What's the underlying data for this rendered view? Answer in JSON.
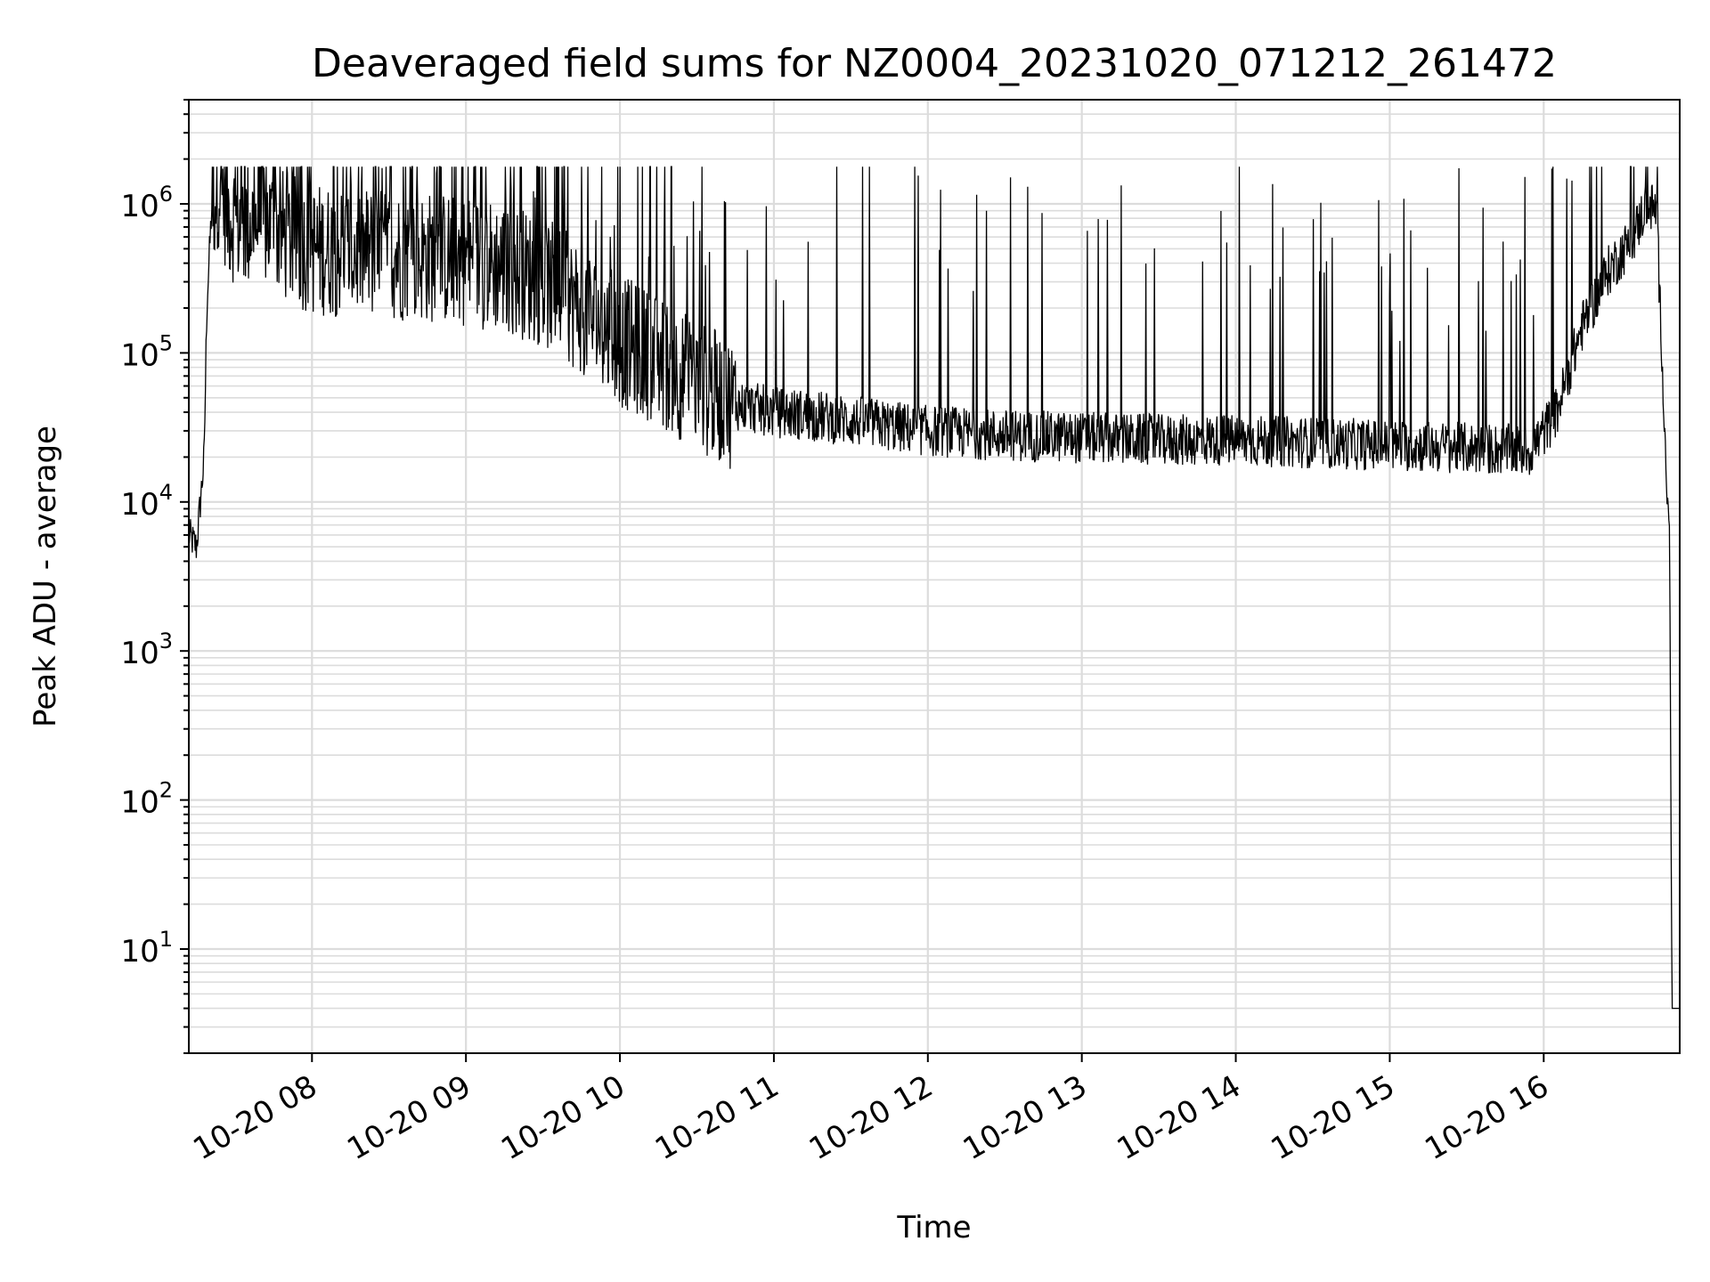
{
  "chart_data": {
    "type": "line",
    "title": "Deaveraged field sums for NZ0004_20231020_071212_261472",
    "xlabel": "Time",
    "ylabel": "Peak ADU - average",
    "yscale": "log",
    "ylim": [
      2,
      5000000
    ],
    "xlim": [
      "2023-10-20T07:12",
      "2023-10-20T16:53"
    ],
    "grid": true,
    "x_ticks": [
      "10-20 08",
      "10-20 09",
      "10-20 10",
      "10-20 11",
      "10-20 12",
      "10-20 13",
      "10-20 14",
      "10-20 15",
      "10-20 16"
    ],
    "y_ticks": [
      {
        "base": "10",
        "exp": "1"
      },
      {
        "base": "10",
        "exp": "2"
      },
      {
        "base": "10",
        "exp": "3"
      },
      {
        "base": "10",
        "exp": "4"
      },
      {
        "base": "10",
        "exp": "5"
      },
      {
        "base": "10",
        "exp": "6"
      }
    ],
    "series": [
      {
        "color": "#000000",
        "x": [
          "2023-10-20T07:12",
          "2023-10-20T07:15",
          "2023-10-20T07:18",
          "2023-10-20T07:19",
          "2023-10-20T07:21",
          "2023-10-20T07:24",
          "2023-10-20T07:27",
          "2023-10-20T07:33",
          "2023-10-20T07:40",
          "2023-10-20T07:50",
          "2023-10-20T08:00",
          "2023-10-20T08:15",
          "2023-10-20T08:30",
          "2023-10-20T08:45",
          "2023-10-20T09:00",
          "2023-10-20T09:15",
          "2023-10-20T09:30",
          "2023-10-20T09:45",
          "2023-10-20T10:00",
          "2023-10-20T10:15",
          "2023-10-20T10:30",
          "2023-10-20T10:45",
          "2023-10-20T11:00",
          "2023-10-20T11:15",
          "2023-10-20T11:30",
          "2023-10-20T12:00",
          "2023-10-20T12:30",
          "2023-10-20T13:00",
          "2023-10-20T13:30",
          "2023-10-20T14:00",
          "2023-10-20T14:30",
          "2023-10-20T15:00",
          "2023-10-20T15:30",
          "2023-10-20T15:55",
          "2023-10-20T16:05",
          "2023-10-20T16:15",
          "2023-10-20T16:25",
          "2023-10-20T16:35",
          "2023-10-20T16:40",
          "2023-10-20T16:44",
          "2023-10-20T16:46",
          "2023-10-20T16:48",
          "2023-10-20T16:49",
          "2023-10-20T16:50",
          "2023-10-20T16:53"
        ],
        "y": [
          6000,
          5000,
          20000,
          200000,
          1000000,
          1500000,
          900000,
          700000,
          800000,
          600000,
          500000,
          480000,
          460000,
          440000,
          420000,
          380000,
          300000,
          200000,
          120000,
          90000,
          60000,
          45000,
          40000,
          38000,
          35000,
          30000,
          28000,
          27000,
          26000,
          26000,
          25000,
          24000,
          23000,
          22000,
          40000,
          150000,
          350000,
          600000,
          1000000,
          900000,
          100000,
          12000,
          8000,
          4,
          4
        ]
      }
    ]
  }
}
